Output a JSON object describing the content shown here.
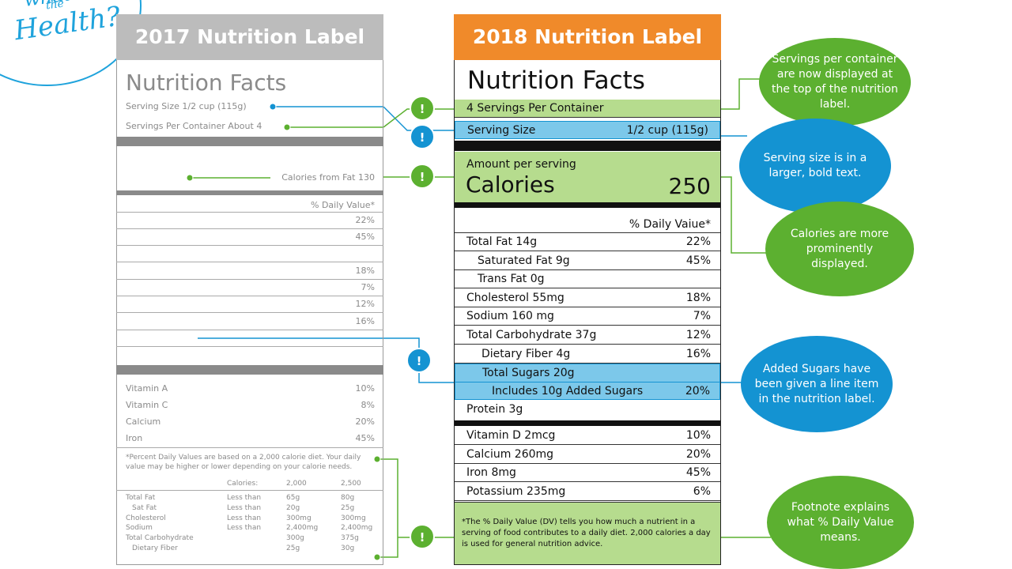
{
  "logo": {
    "small": "the",
    "main": "Health?",
    "top": "what"
  },
  "old_label": {
    "header": "2017 Nutrition Label",
    "title": "Nutrition Facts",
    "serving_size": "Serving Size 1/2 cup (115g)",
    "servings_per_container": "Servings Per Container About 4",
    "calories_from_fat": "Calories from Fat 130",
    "dv_header": "% Daily Value*",
    "dv_values": [
      "22%",
      "45%",
      "",
      "18%",
      "7%",
      "12%",
      "16%"
    ],
    "vitamins": [
      {
        "name": "Vitamin A",
        "pct": "10%"
      },
      {
        "name": "Vitamin C",
        "pct": "8%"
      },
      {
        "name": "Calcium",
        "pct": "20%"
      },
      {
        "name": "Iron",
        "pct": "45%"
      }
    ],
    "footnote": "*Percent Daily Values are based on a 2,000 calorie diet. Your daily value may be higher or lower depending on your calorie needs.",
    "fn_table": {
      "header": [
        "Calories:",
        "2,000",
        "2,500"
      ],
      "rows": [
        [
          "Total Fat",
          "Less than",
          "65g",
          "80g"
        ],
        [
          "Sat Fat",
          "Less than",
          "20g",
          "25g"
        ],
        [
          "Cholesterol",
          "Less than",
          "300mg",
          "300mg"
        ],
        [
          "Sodium",
          "Less than",
          "2,400mg",
          "2,400mg"
        ],
        [
          "Total Carbohydrate",
          "",
          "300g",
          "375g"
        ],
        [
          "Dietary Fiber",
          "",
          "25g",
          "30g"
        ]
      ]
    }
  },
  "new_label": {
    "header": "2018 Nutrition Label",
    "title": "Nutrition Facts",
    "servings": "4 Servings Per Container",
    "serving_size_label": "Serving Size",
    "serving_size_value": "1/2 cup (115g)",
    "amount_per_serving": "Amount per serving",
    "calories_label": "Calories",
    "calories_value": "250",
    "dv_header": "% Daily Vaiue*",
    "nutrients": [
      {
        "name": "Total Fat 14g",
        "pct": "22%"
      },
      {
        "name": "Saturated Fat 9g",
        "pct": "45%"
      },
      {
        "name": "Trans Fat 0g",
        "pct": ""
      },
      {
        "name": "Cholesterol 55mg",
        "pct": "18%"
      },
      {
        "name": "Sodium 160 mg",
        "pct": "7%"
      },
      {
        "name": "Total Carbohydrate 37g",
        "pct": "12%"
      },
      {
        "name": "Dietary Fiber 4g",
        "pct": "16%"
      }
    ],
    "total_sugars": "Total Sugars 20g",
    "added_sugars": "Includes 10g Added Sugars",
    "added_sugars_pct": "20%",
    "protein": "Protein 3g",
    "minerals": [
      {
        "name": "Vitamin D 2mcg",
        "pct": "10%"
      },
      {
        "name": "Calcium 260mg",
        "pct": "20%"
      },
      {
        "name": "Iron 8mg",
        "pct": "45%"
      },
      {
        "name": "Potassium 235mg",
        "pct": "6%"
      }
    ],
    "footnote": "*The % Daily Value (DV) tells you how much a nutrient in a serving of food contributes to a daily diet. 2,000 calories a day is used for general nutrition advice."
  },
  "callouts": {
    "mark": "!",
    "servings": "Servings per container are now displayed at the top of the nutrition label.",
    "serving_size": "Serving size is in a larger, bold text.",
    "calories": "Calories are more prominently displayed.",
    "added_sugars": "Added Sugars have been given a line item in the nutrition label.",
    "footnote": "Footnote explains what % Daily Value means."
  },
  "colors": {
    "orange": "#f08a2a",
    "green": "#5cb030",
    "blue": "#1493d2",
    "light_green": "#b6dc8e",
    "light_blue": "#7cc8ea",
    "grey": "#bcbcbc"
  }
}
